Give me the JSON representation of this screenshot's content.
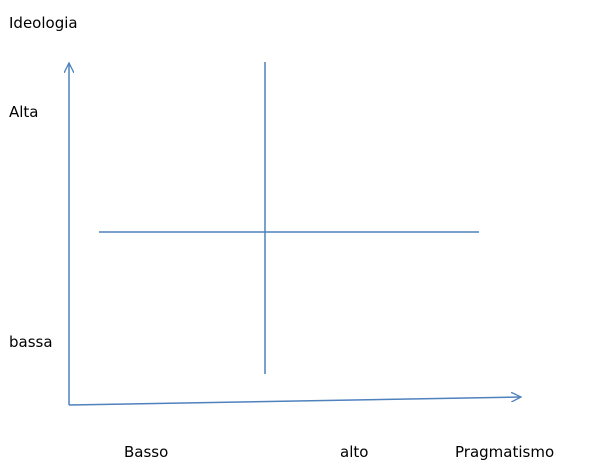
{
  "diagram": {
    "y_axis": {
      "title": "Ideologia",
      "high_label": "Alta",
      "low_label": "bassa"
    },
    "x_axis": {
      "title": "Pragmatismo",
      "low_label": "Basso",
      "high_label": "alto"
    },
    "colors": {
      "lines": "#4f81bd",
      "text": "#000000"
    }
  }
}
